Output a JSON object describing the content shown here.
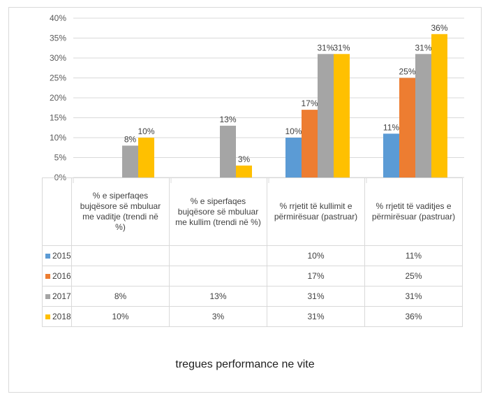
{
  "chart_data": {
    "type": "bar",
    "categories": [
      "% e siperfaqes bujqësore së mbuluar me vaditje (trendi në %)",
      "% e siperfaqes bujqësore së mbuluar me kullim (trendi në %)",
      "% rrjetit të kullimit e përmirësuar (pastruar)",
      "% rrjetit të vaditjes e përmirësuar (pastruar)"
    ],
    "category_lines": [
      [
        "% e siperfaqes",
        "bujqësore së mbuluar",
        "me vaditje (trendi në",
        "%)"
      ],
      [
        "% e siperfaqes",
        "bujqësore së mbuluar",
        "me kullim (trendi në %)"
      ],
      [
        "% rrjetit të kullimit e",
        "përmirësuar (pastruar)"
      ],
      [
        "% rrjetit të vaditjes e",
        "përmirësuar (pastruar)"
      ]
    ],
    "series": [
      {
        "name": "2015",
        "color": "#5b9bd5",
        "values": [
          null,
          null,
          10,
          11
        ]
      },
      {
        "name": "2016",
        "color": "#ed7d31",
        "values": [
          null,
          null,
          17,
          25
        ]
      },
      {
        "name": "2017",
        "color": "#a5a5a5",
        "values": [
          8,
          13,
          31,
          31
        ]
      },
      {
        "name": "2018",
        "color": "#ffc000",
        "values": [
          10,
          3,
          31,
          36
        ]
      }
    ],
    "ylim": [
      0,
      40
    ],
    "yticks": [
      "0%",
      "5%",
      "10%",
      "15%",
      "20%",
      "25%",
      "30%",
      "35%",
      "40%"
    ],
    "grid": true,
    "legend": "data-table",
    "xlabel": "tregues performance ne vite",
    "ylabel": "",
    "title": ""
  }
}
